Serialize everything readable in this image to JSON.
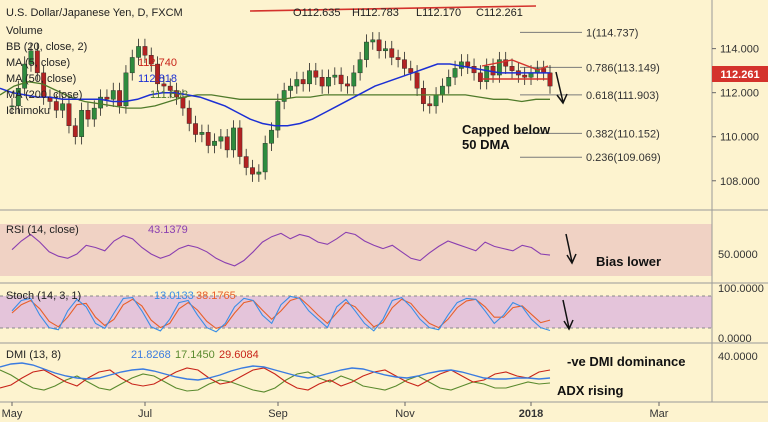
{
  "chart_data": {
    "type": "line",
    "symbol": "U.S. Dollar/Japanese Yen, D, FXCM",
    "ohlc": {
      "o_label": "O",
      "o": "112.635",
      "h_label": "H",
      "h": "112.783",
      "l_label": "L",
      "l": "112.170",
      "c_label": "C",
      "c": "112.261"
    },
    "last_price": "112.261",
    "x_ticks": [
      "May",
      "Jul",
      "Sep",
      "Nov",
      "2018",
      "Mar"
    ],
    "price_axis": {
      "ticks": [
        "114.000",
        "112.000",
        "110.000",
        "108.000"
      ],
      "ylim": [
        106.9,
        115.3
      ]
    },
    "fib_levels": [
      {
        "ratio": "1",
        "price": "114.737"
      },
      {
        "ratio": "0.786",
        "price": "113.149"
      },
      {
        "ratio": "0.618",
        "price": "111.903"
      },
      {
        "ratio": "0.382",
        "price": "110.152"
      },
      {
        "ratio": "0.236",
        "price": "109.069"
      }
    ],
    "indicator_labels": [
      {
        "text": "Volume"
      },
      {
        "text": "BB (20, close, 2)"
      },
      {
        "text": "MA (5, close)",
        "value": "112.740"
      },
      {
        "text": "MA (50, close)",
        "value": "112.818"
      },
      {
        "text": "MA (200, close)",
        "value": "111.693"
      },
      {
        "text": "Ichimoku"
      }
    ],
    "price_close_series": [
      111.4,
      112.2,
      113.3,
      113.9,
      112.9,
      111.8,
      111.6,
      111.2,
      111.5,
      110.5,
      110.0,
      111.2,
      110.8,
      111.3,
      111.8,
      111.7,
      112.1,
      111.4,
      112.9,
      113.6,
      114.1,
      113.7,
      113.3,
      112.4,
      112.3,
      112.1,
      111.8,
      111.3,
      110.6,
      110.1,
      110.2,
      109.6,
      109.8,
      110.0,
      109.4,
      110.4,
      109.1,
      108.6,
      108.3,
      108.4,
      109.7,
      110.3,
      111.6,
      112.1,
      112.3,
      112.6,
      112.4,
      113.0,
      112.7,
      112.3,
      112.7,
      112.8,
      112.4,
      112.3,
      112.9,
      113.5,
      114.3,
      114.4,
      113.9,
      114.0,
      113.6,
      113.5,
      113.1,
      112.9,
      112.2,
      111.5,
      111.4,
      111.9,
      112.3,
      112.7,
      113.1,
      113.4,
      113.2,
      112.9,
      112.5,
      113.2,
      112.8,
      113.5,
      113.2,
      113.0,
      112.8,
      112.7,
      112.9,
      113.1,
      112.9,
      112.3
    ],
    "ma50_series": [
      112.2,
      112.0,
      111.9,
      111.8,
      111.8,
      111.7,
      111.7,
      111.7,
      111.7,
      111.6,
      111.6,
      111.7,
      111.9,
      112.0,
      112.0,
      111.9,
      111.8,
      111.6,
      111.4,
      111.1,
      110.8,
      110.6,
      110.5,
      110.5,
      110.6,
      110.8,
      111.1,
      111.4,
      111.7,
      112.0,
      112.3,
      112.5,
      112.7,
      112.9,
      113.1,
      113.3,
      113.3,
      113.2,
      113.1,
      113.0,
      112.9,
      112.9,
      112.9,
      112.9,
      112.9
    ],
    "ma200_series": [
      111.9,
      112.3,
      112.5,
      112.4,
      112.1,
      111.8,
      111.6,
      111.5,
      111.4,
      111.3,
      111.3,
      111.4,
      111.6,
      111.8,
      111.9,
      111.9,
      111.8,
      111.7,
      111.7,
      111.7,
      111.7,
      111.8,
      111.8,
      111.9,
      111.9,
      111.9,
      111.9,
      111.9,
      111.9,
      111.9,
      111.9,
      111.9,
      111.9,
      111.9,
      111.8,
      111.7,
      111.7,
      111.6,
      111.7,
      111.7
    ],
    "rsi": {
      "label": "RSI (14, close)",
      "value": "43.1379",
      "ticks": [
        "50.0000"
      ],
      "ylim": [
        20,
        80
      ],
      "series": [
        48,
        56,
        62,
        55,
        46,
        42,
        40,
        44,
        52,
        50,
        47,
        56,
        61,
        58,
        50,
        44,
        40,
        43,
        49,
        52,
        50,
        46,
        40,
        36,
        33,
        38,
        46,
        55,
        60,
        63,
        58,
        62,
        60,
        55,
        53,
        58,
        64,
        62,
        56,
        52,
        49,
        52,
        46,
        40,
        38,
        45,
        51,
        56,
        53,
        50,
        47,
        55,
        51,
        49,
        47,
        52,
        50,
        44,
        43
      ]
    },
    "stoch": {
      "label": "Stoch (14, 3, 1)",
      "k_value": "13.0133",
      "d_value": "38.1765",
      "ticks": [
        "100.0000",
        "0.0000"
      ],
      "ylim": [
        -5,
        115
      ],
      "k_series": [
        60,
        85,
        90,
        50,
        20,
        15,
        60,
        88,
        70,
        30,
        18,
        55,
        90,
        92,
        60,
        22,
        12,
        40,
        80,
        85,
        50,
        20,
        10,
        30,
        70,
        90,
        85,
        50,
        30,
        75,
        95,
        90,
        60,
        40,
        20,
        70,
        88,
        60,
        30,
        12,
        40,
        85,
        92,
        70,
        40,
        20,
        15,
        50,
        80,
        90,
        88,
        60,
        30,
        50,
        80,
        70,
        40,
        20,
        13
      ],
      "d_series": [
        55,
        75,
        85,
        65,
        35,
        22,
        45,
        75,
        78,
        45,
        25,
        40,
        75,
        88,
        72,
        38,
        20,
        30,
        65,
        80,
        62,
        35,
        18,
        25,
        55,
        80,
        85,
        62,
        40,
        60,
        85,
        92,
        72,
        50,
        30,
        55,
        80,
        70,
        45,
        22,
        32,
        68,
        88,
        78,
        52,
        30,
        20,
        40,
        68,
        84,
        88,
        70,
        45,
        45,
        68,
        72,
        52,
        32,
        38
      ]
    },
    "dmi": {
      "label": "DMI (13, 8)",
      "adx_value": "21.8268",
      "plus_value": "17.1450",
      "minus_value": "29.6084",
      "ticks": [
        "40.0000"
      ],
      "ylim": [
        0,
        50
      ],
      "adx_series": [
        33,
        36,
        37,
        35,
        31,
        27,
        24,
        22,
        21,
        22,
        25,
        28,
        30,
        31,
        29,
        26,
        23,
        21,
        20,
        22,
        25,
        29,
        32,
        34,
        33,
        30,
        27,
        24,
        22,
        24,
        27,
        30,
        32,
        31,
        28,
        25,
        23,
        22,
        24,
        27,
        29,
        30,
        28,
        25,
        22,
        21,
        21,
        22,
        22,
        21,
        22
      ],
      "plus_series": [
        30,
        25,
        18,
        12,
        10,
        14,
        20,
        24,
        18,
        12,
        10,
        16,
        22,
        26,
        24,
        18,
        12,
        9,
        10,
        16,
        20,
        18,
        14,
        10,
        8,
        12,
        20,
        26,
        28,
        22,
        18,
        24,
        20,
        14,
        12,
        10,
        14,
        20,
        24,
        18,
        12,
        10,
        14,
        18,
        16,
        12,
        12,
        15,
        18,
        16,
        17
      ],
      "minus_series": [
        12,
        15,
        22,
        28,
        30,
        24,
        18,
        14,
        22,
        28,
        30,
        22,
        16,
        14,
        16,
        22,
        28,
        32,
        30,
        22,
        16,
        18,
        24,
        30,
        32,
        26,
        18,
        12,
        10,
        16,
        20,
        14,
        18,
        24,
        28,
        30,
        24,
        18,
        14,
        20,
        26,
        30,
        24,
        18,
        20,
        26,
        28,
        24,
        22,
        28,
        30
      ]
    },
    "annotations": {
      "capped": "Capped below",
      "capped2": "50 DMA",
      "bias": "Bias lower",
      "dmi_note": "-ve DMI dominance",
      "adx_note": "ADX rising"
    },
    "colors": {
      "bg": "#fdf3cf",
      "band": "#f0d2c4",
      "stoch_band": "#e4c4da",
      "ma50": "#1c2fd4",
      "ma200": "#4f7a2a",
      "trend": "#d4322c",
      "rsi": "#8a3fb0",
      "k": "#3a8ee6",
      "d": "#e8602a",
      "adx": "#3a7be0",
      "plus": "#5a8a2e",
      "minus": "#c8241a",
      "badge": "#d4322c",
      "bull": "#2e8b3e",
      "bear": "#b22222"
    }
  }
}
